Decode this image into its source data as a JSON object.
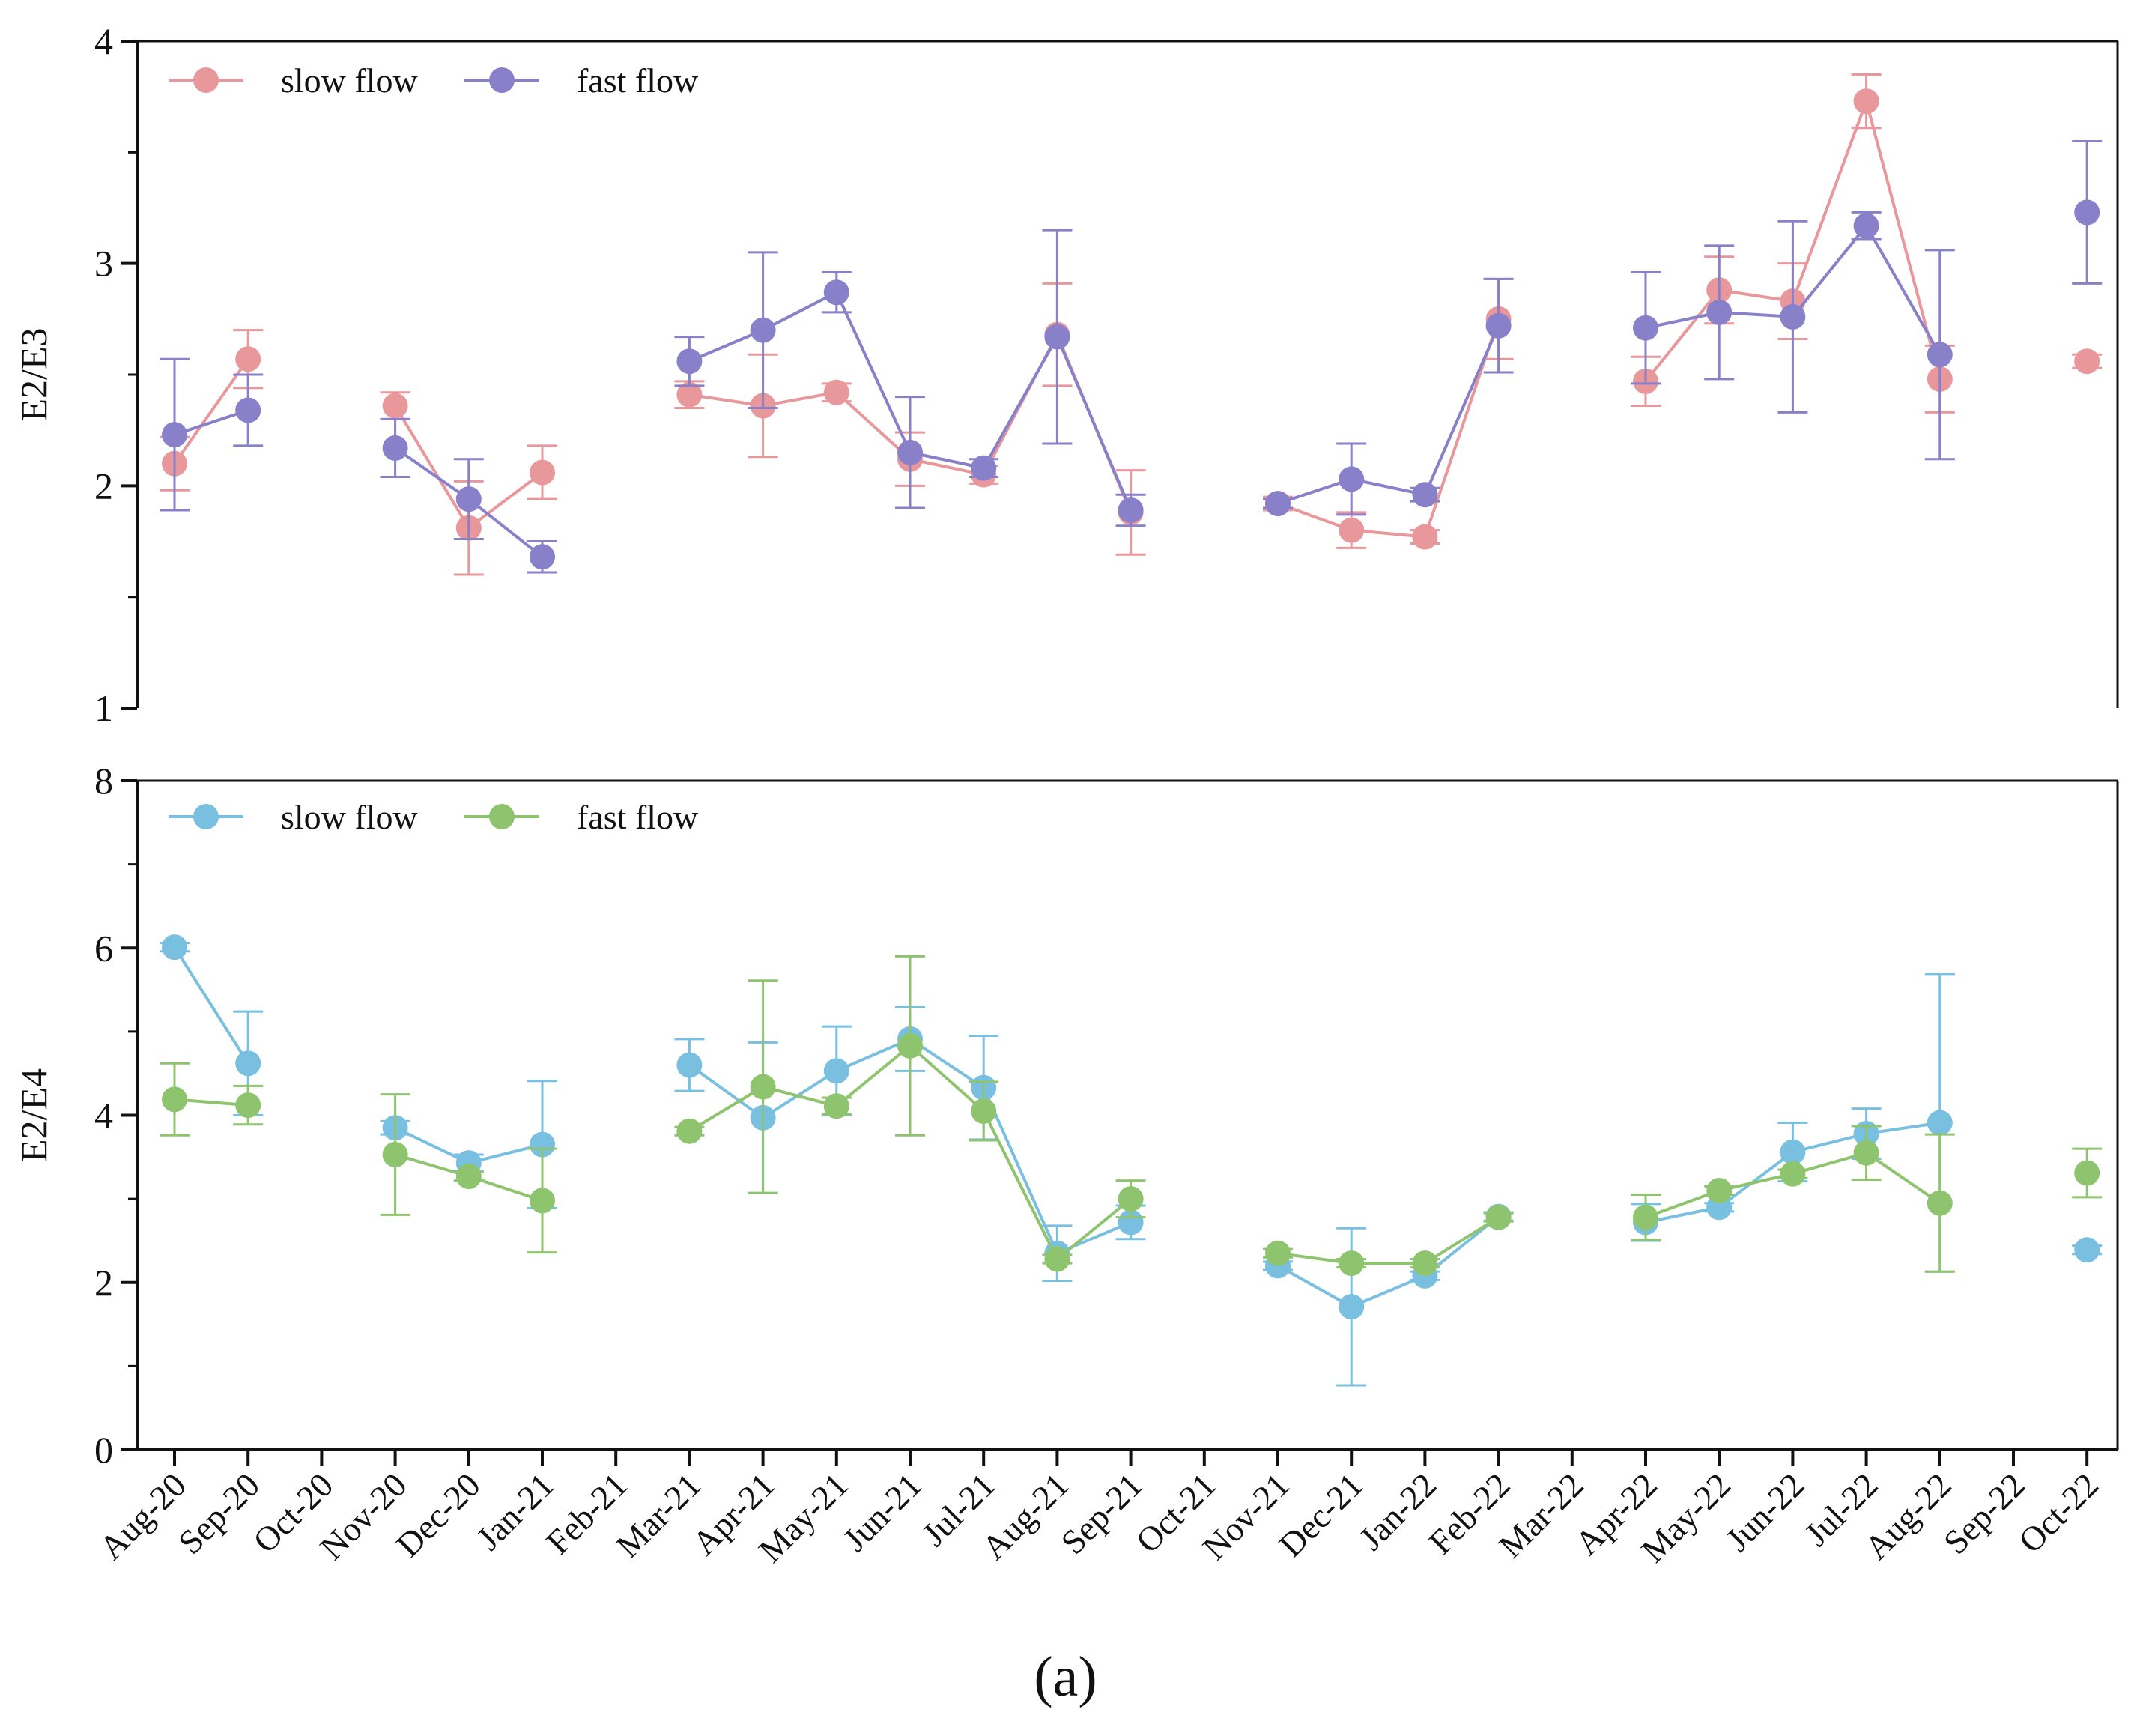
{
  "caption": "(a)",
  "chart_data": [
    {
      "type": "line",
      "ylabel": "E2/E3",
      "ylim": [
        1,
        4
      ],
      "yticks": [
        "1",
        "2",
        "3",
        "4"
      ],
      "categories": [
        "Aug-20",
        "Sep-20",
        "Oct-20",
        "Nov-20",
        "Dec-20",
        "Jan-21",
        "Feb-21",
        "Mar-21",
        "Apr-21",
        "May-21",
        "Jun-21",
        "Jul-21",
        "Aug-21",
        "Sep-21",
        "Oct-21",
        "Nov-21",
        "Dec-21",
        "Jan-22",
        "Feb-22",
        "Mar-22",
        "Apr-22",
        "May-22",
        "Jun-22",
        "Jul-22",
        "Aug-22",
        "Sep-22",
        "Oct-22"
      ],
      "legend_position": "top-left",
      "series": [
        {
          "name": "slow flow",
          "color": "#e8989b",
          "values": [
            2.1,
            2.57,
            null,
            2.36,
            1.81,
            2.06,
            null,
            2.41,
            2.36,
            2.42,
            2.12,
            2.05,
            2.68,
            1.88,
            null,
            1.92,
            1.8,
            1.77,
            2.75,
            null,
            2.47,
            2.88,
            2.83,
            3.73,
            2.48,
            null,
            2.56
          ],
          "errors": [
            0.12,
            0.13,
            null,
            0.06,
            0.21,
            0.12,
            null,
            0.06,
            0.23,
            0.04,
            0.12,
            0.04,
            0.23,
            0.19,
            null,
            0.03,
            0.08,
            0.03,
            0.18,
            null,
            0.11,
            0.15,
            0.17,
            0.12,
            0.15,
            null,
            0.03
          ]
        },
        {
          "name": "fast flow",
          "color": "#8880c8",
          "values": [
            2.23,
            2.34,
            null,
            2.17,
            1.94,
            1.68,
            null,
            2.56,
            2.7,
            2.87,
            2.15,
            2.08,
            2.67,
            1.89,
            null,
            1.92,
            2.03,
            1.96,
            2.72,
            null,
            2.71,
            2.78,
            2.76,
            3.17,
            2.59,
            null,
            3.23
          ],
          "errors": [
            0.34,
            0.16,
            null,
            0.13,
            0.18,
            0.07,
            null,
            0.11,
            0.35,
            0.09,
            0.25,
            0.04,
            0.48,
            0.07,
            null,
            0.02,
            0.16,
            0.03,
            0.21,
            null,
            0.25,
            0.3,
            0.43,
            0.06,
            0.47,
            null,
            0.32
          ]
        }
      ]
    },
    {
      "type": "line",
      "ylabel": "E2/E4",
      "ylim": [
        0,
        8
      ],
      "yticks": [
        "0",
        "2",
        "4",
        "6",
        "8"
      ],
      "categories": [
        "Aug-20",
        "Sep-20",
        "Oct-20",
        "Nov-20",
        "Dec-20",
        "Jan-21",
        "Feb-21",
        "Mar-21",
        "Apr-21",
        "May-21",
        "Jun-21",
        "Jul-21",
        "Aug-21",
        "Sep-21",
        "Oct-21",
        "Nov-21",
        "Dec-21",
        "Jan-22",
        "Feb-22",
        "Mar-22",
        "Apr-22",
        "May-22",
        "Jun-22",
        "Jul-22",
        "Aug-22",
        "Sep-22",
        "Oct-22"
      ],
      "legend_position": "top-left",
      "xlabel": "",
      "series": [
        {
          "name": "slow flow",
          "color": "#78bfe0",
          "values": [
            6.01,
            4.62,
            null,
            3.85,
            3.43,
            3.65,
            null,
            4.6,
            3.97,
            4.53,
            4.91,
            4.33,
            2.35,
            2.72,
            null,
            2.2,
            1.71,
            2.08,
            2.79,
            null,
            2.72,
            2.9,
            3.56,
            3.78,
            3.91,
            null,
            2.39
          ],
          "errors": [
            0.05,
            0.62,
            null,
            0.08,
            0.1,
            0.76,
            null,
            0.31,
            0.9,
            0.53,
            0.38,
            0.62,
            0.33,
            0.2,
            null,
            0.05,
            0.94,
            0.05,
            0.05,
            null,
            0.22,
            0.05,
            0.35,
            0.3,
            1.78,
            null,
            0.05
          ]
        },
        {
          "name": "fast flow",
          "color": "#8fc46e",
          "values": [
            4.19,
            4.12,
            null,
            3.53,
            3.27,
            2.98,
            null,
            3.81,
            4.34,
            4.11,
            4.83,
            4.05,
            2.28,
            3.0,
            null,
            2.35,
            2.23,
            2.23,
            2.78,
            null,
            2.78,
            3.1,
            3.3,
            3.55,
            2.95,
            null,
            3.31
          ],
          "errors": [
            0.43,
            0.23,
            null,
            0.72,
            0.05,
            0.62,
            null,
            0.05,
            1.27,
            0.1,
            1.07,
            0.35,
            0.05,
            0.22,
            null,
            0.05,
            0.05,
            0.05,
            0.05,
            null,
            0.27,
            0.05,
            0.05,
            0.32,
            0.82,
            null,
            0.29
          ]
        }
      ]
    }
  ]
}
